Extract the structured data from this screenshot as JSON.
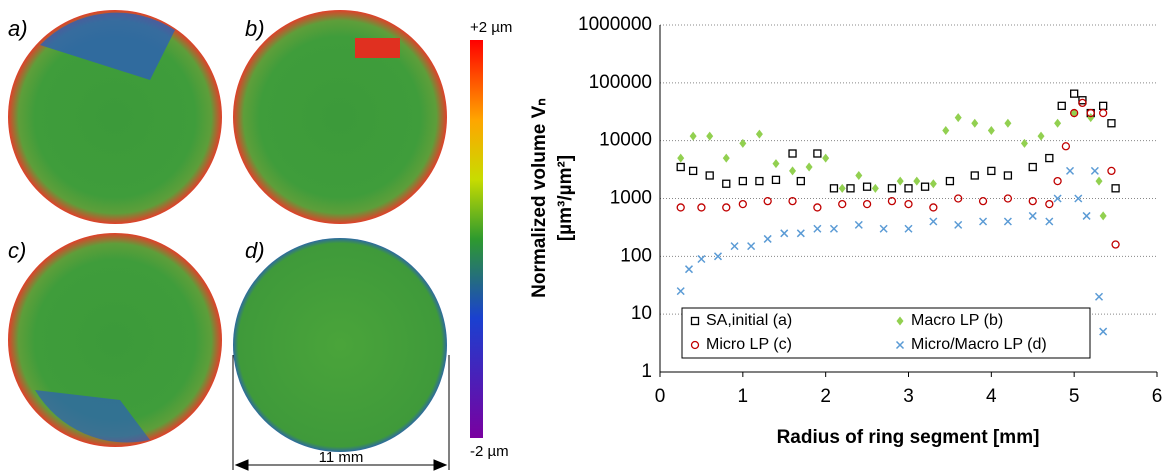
{
  "panels": [
    {
      "label": "a)"
    },
    {
      "label": "b)"
    },
    {
      "label": "c)"
    },
    {
      "label": "d)"
    }
  ],
  "colorbar": {
    "top_label": "+2 µm",
    "bottom_label": "-2 µm"
  },
  "scale_bar": {
    "label": "11 mm"
  },
  "chart_data": {
    "type": "scatter",
    "log_y": true,
    "grid": true,
    "x_label": "Radius of ring segment [mm]",
    "y_label": [
      "Normalized volume Vₙ",
      "[µm³/µm²]"
    ],
    "xlim": [
      0,
      6
    ],
    "xticks": [
      0,
      1,
      2,
      3,
      4,
      5,
      6
    ],
    "ylim": [
      1,
      1000000
    ],
    "yticks": [
      1,
      10,
      100,
      1000,
      10000,
      100000,
      1000000
    ],
    "series": [
      {
        "name": "SA,initial (a)",
        "color": "#000000",
        "marker": "square",
        "x": [
          0.25,
          0.4,
          0.6,
          0.8,
          1.0,
          1.2,
          1.4,
          1.6,
          1.7,
          1.9,
          2.1,
          2.3,
          2.5,
          2.8,
          3.0,
          3.2,
          3.5,
          3.8,
          4.0,
          4.2,
          4.5,
          4.7,
          4.85,
          5.0,
          5.1,
          5.2,
          5.35,
          5.45,
          5.5
        ],
        "values": [
          3500,
          3000,
          2500,
          1800,
          2000,
          2000,
          2100,
          6000,
          2000,
          6000,
          1500,
          1500,
          1600,
          1500,
          1500,
          1600,
          2000,
          2500,
          3000,
          2500,
          3500,
          5000,
          40000,
          65000,
          50000,
          30000,
          40000,
          20000,
          1500
        ]
      },
      {
        "name": "Macro LP (b)",
        "color": "#92d050",
        "marker": "diamond",
        "x": [
          0.25,
          0.4,
          0.6,
          0.8,
          1.0,
          1.2,
          1.4,
          1.6,
          1.8,
          2.0,
          2.2,
          2.4,
          2.6,
          2.9,
          3.1,
          3.3,
          3.45,
          3.6,
          3.8,
          4.0,
          4.2,
          4.4,
          4.6,
          4.8,
          5.0,
          5.2,
          5.3,
          5.35
        ],
        "values": [
          5000,
          12000,
          12000,
          5000,
          9000,
          13000,
          4000,
          3000,
          3500,
          5000,
          1500,
          2500,
          1500,
          2000,
          2000,
          1800,
          15000,
          25000,
          20000,
          15000,
          20000,
          9000,
          12000,
          20000,
          30000,
          25000,
          2000,
          500
        ]
      },
      {
        "name": "Micro LP (c)",
        "color": "#c00000",
        "marker": "circle",
        "x": [
          0.25,
          0.5,
          0.8,
          1.0,
          1.3,
          1.6,
          1.9,
          2.2,
          2.5,
          2.8,
          3.0,
          3.3,
          3.6,
          3.9,
          4.2,
          4.5,
          4.7,
          4.8,
          4.9,
          5.0,
          5.1,
          5.2,
          5.35,
          5.45,
          5.5
        ],
        "values": [
          700,
          700,
          700,
          800,
          900,
          900,
          700,
          800,
          800,
          900,
          800,
          700,
          1000,
          900,
          1000,
          900,
          800,
          2000,
          8000,
          30000,
          45000,
          30000,
          30000,
          3000,
          160
        ]
      },
      {
        "name": "Micro/Macro LP (d)",
        "color": "#5b9bd5",
        "marker": "x",
        "x": [
          0.25,
          0.35,
          0.5,
          0.7,
          0.9,
          1.1,
          1.3,
          1.5,
          1.7,
          1.9,
          2.1,
          2.4,
          2.7,
          3.0,
          3.3,
          3.6,
          3.9,
          4.2,
          4.5,
          4.7,
          4.8,
          4.95,
          5.05,
          5.15,
          5.25,
          5.3,
          5.35
        ],
        "values": [
          25,
          60,
          90,
          100,
          150,
          150,
          200,
          250,
          250,
          300,
          300,
          350,
          300,
          300,
          400,
          350,
          400,
          400,
          500,
          400,
          1000,
          3000,
          1000,
          500,
          3000,
          20,
          5
        ]
      }
    ]
  }
}
